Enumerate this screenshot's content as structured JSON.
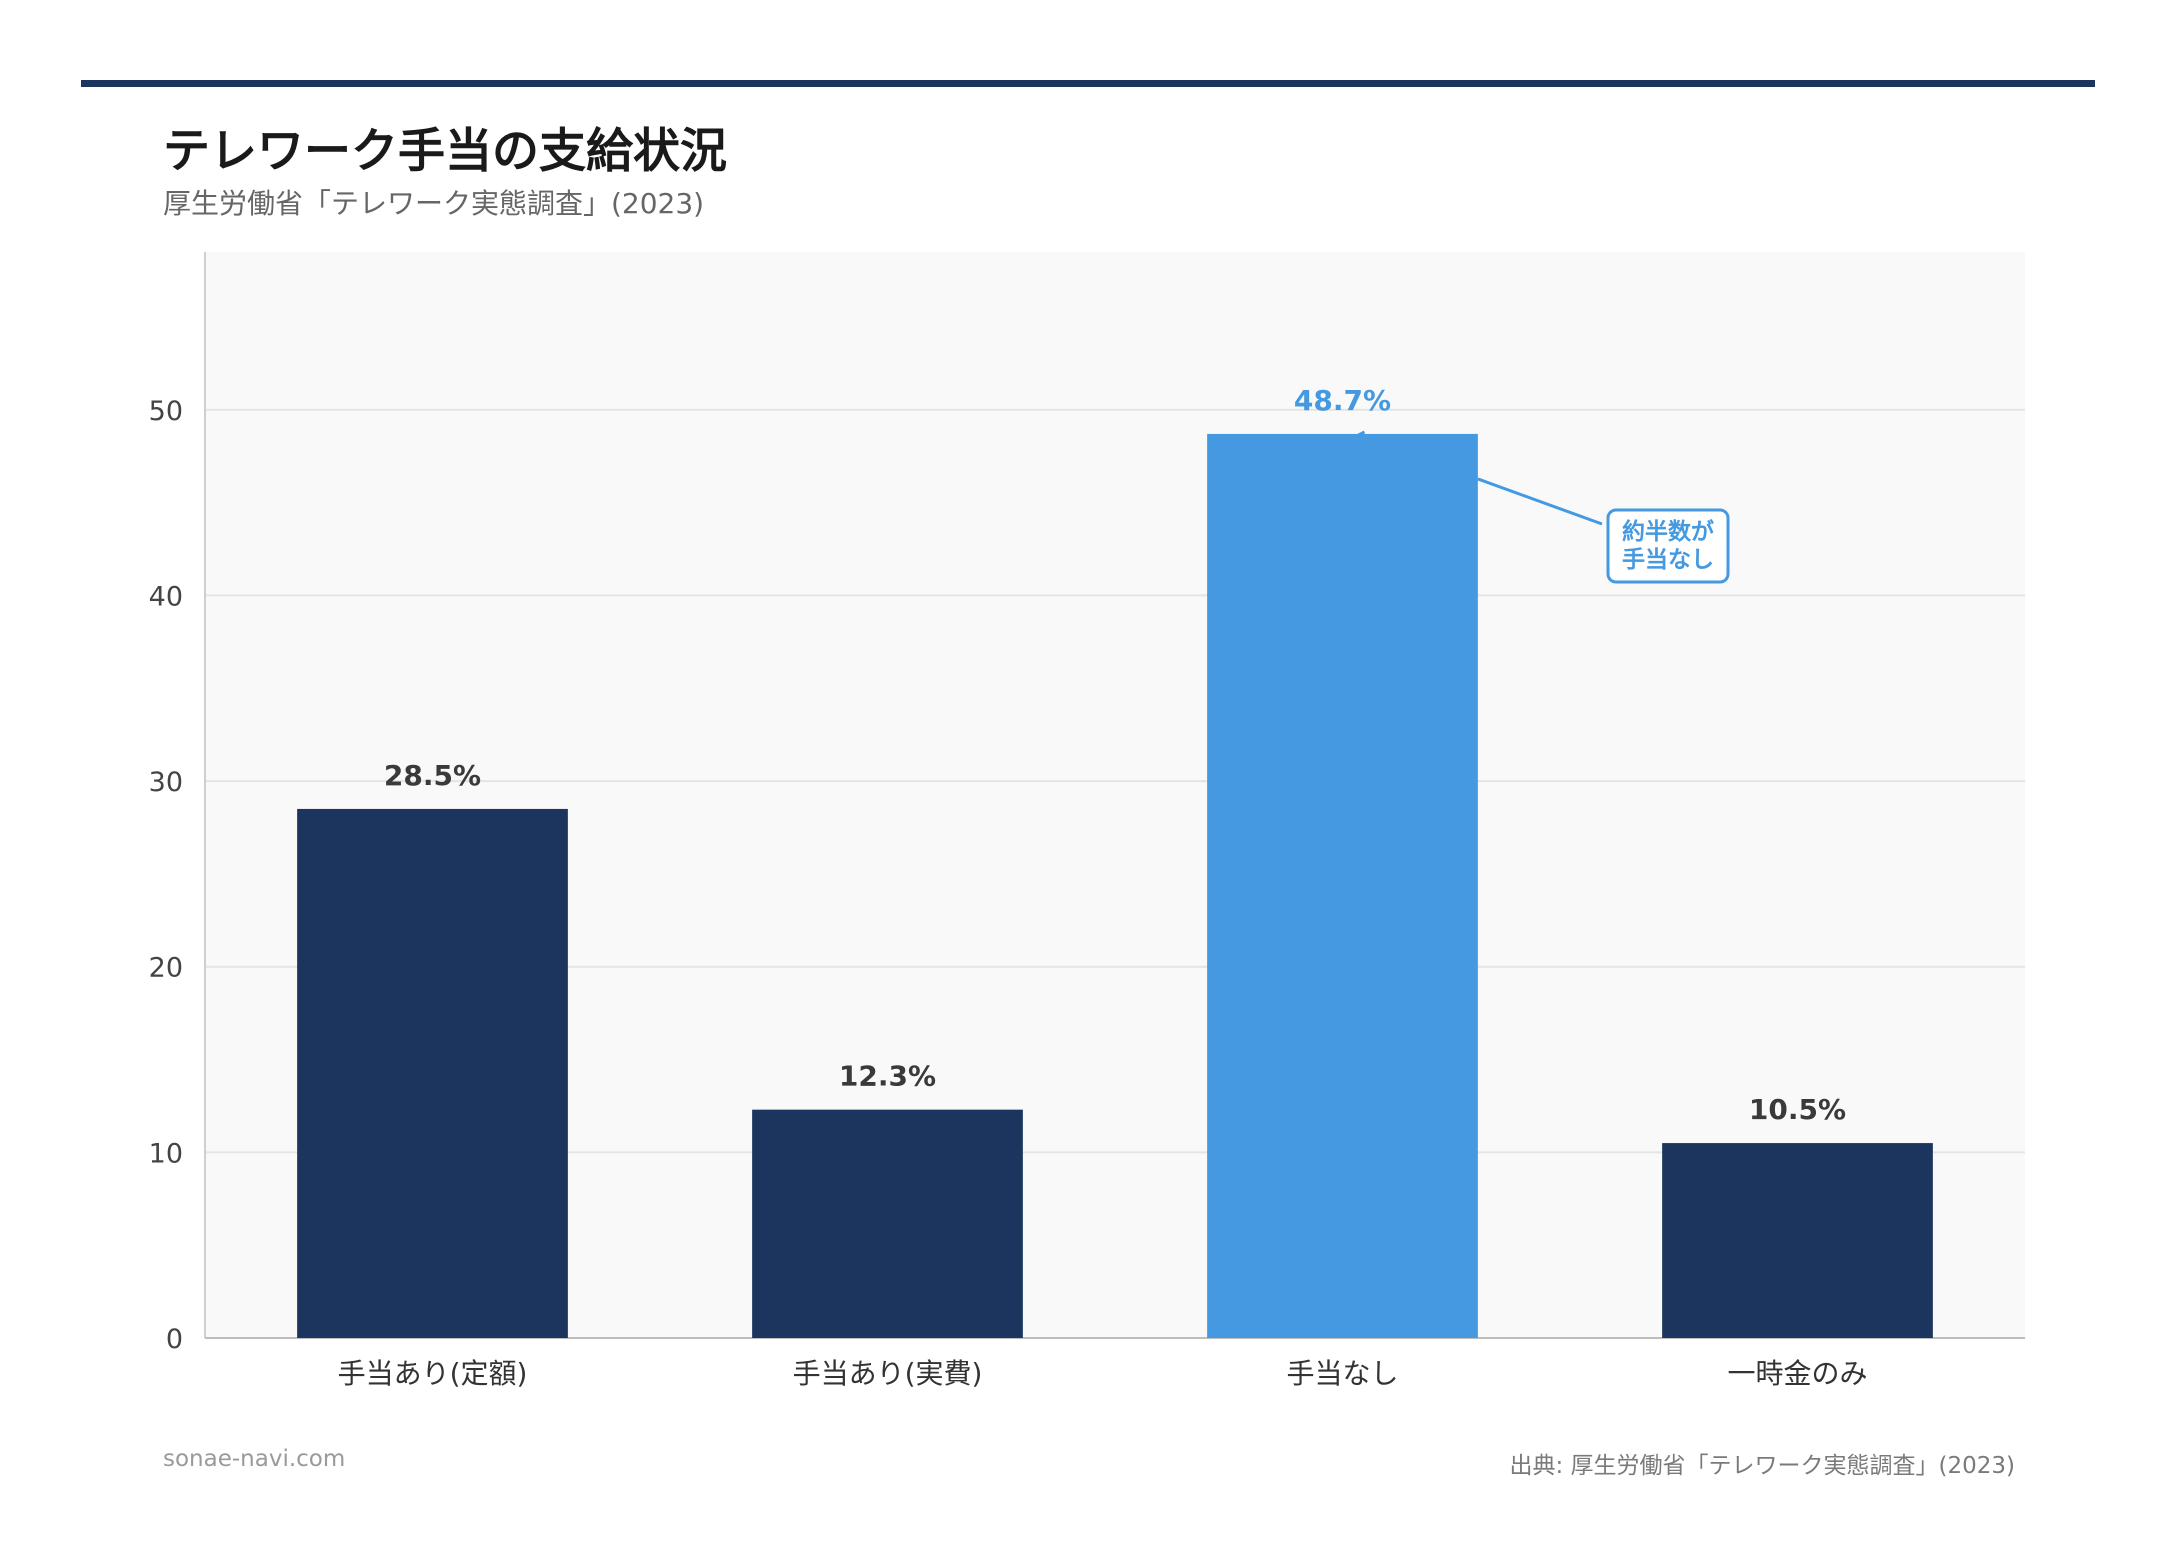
{
  "header": {
    "title": "テレワーク手当の支給状況",
    "subtitle": "厚生労働省「テレワーク実態調査」(2023)"
  },
  "footer": {
    "site": "sonae-navi.com",
    "source": "出典: 厚生労働省「テレワーク実態調査」(2023)"
  },
  "colors": {
    "rule": "#1c355e",
    "bar": "#1c355e",
    "highlight": "#4499e0",
    "plot_bg": "#f9f9f9",
    "grid": "#e4e4e4"
  },
  "chart_data": {
    "type": "bar",
    "categories": [
      "手当あり(定額)",
      "手当あり(実費)",
      "手当なし",
      "一時金のみ"
    ],
    "values": [
      28.5,
      12.3,
      48.7,
      10.5
    ],
    "value_labels": [
      "28.5%",
      "12.3%",
      "48.7%",
      "10.5%"
    ],
    "highlight_index": 2,
    "yticks": [
      0,
      10,
      20,
      30,
      40,
      50
    ],
    "ylim": [
      0,
      58.5
    ],
    "grid": true,
    "annotation": {
      "lines": [
        "約半数が",
        "手当なし"
      ],
      "target_index": 2
    }
  }
}
